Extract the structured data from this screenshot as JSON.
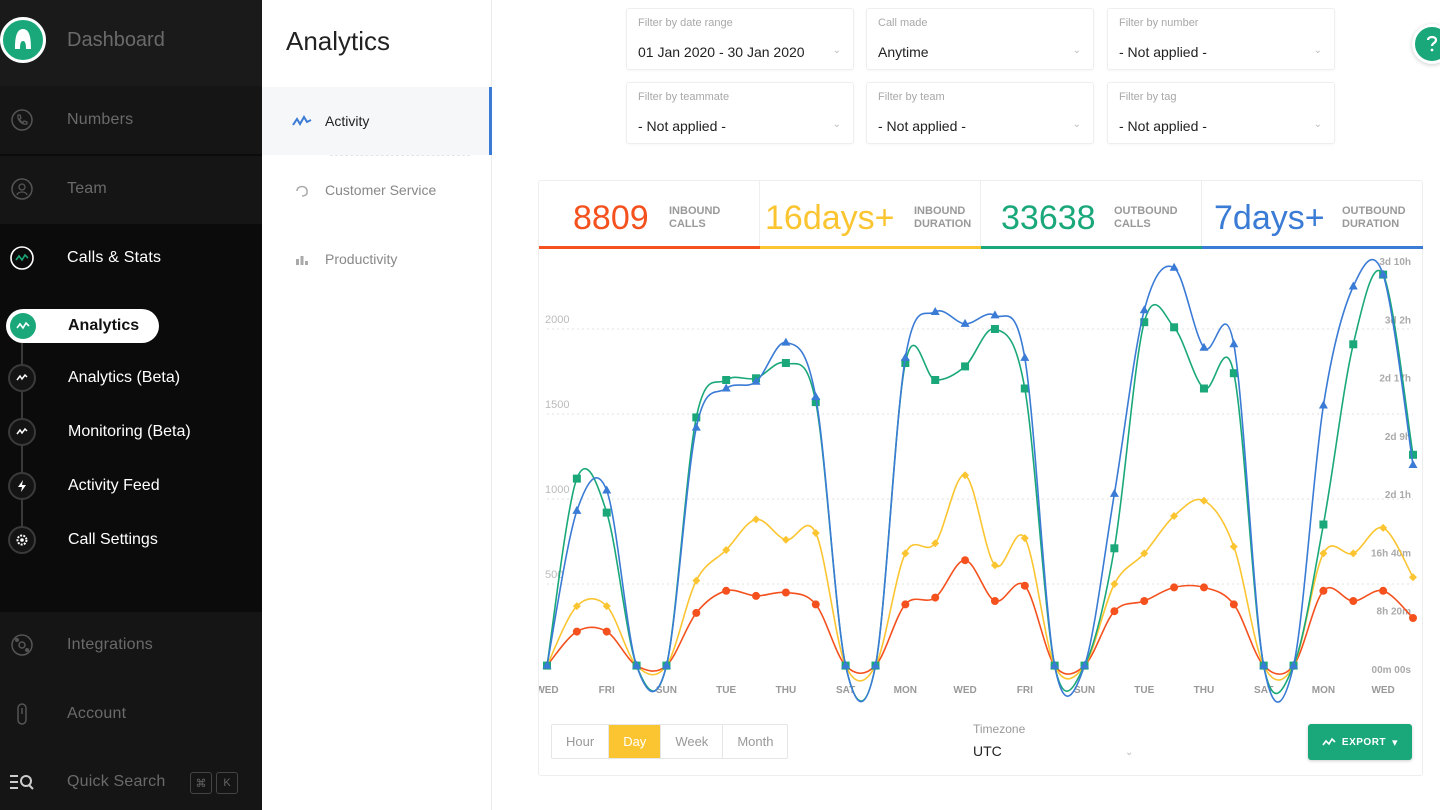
{
  "sidebar": {
    "brand": "Dashboard",
    "items": [
      {
        "label": "Numbers",
        "icon": "phone-icon"
      },
      {
        "label": "Team",
        "icon": "user-icon"
      },
      {
        "label": "Calls & Stats",
        "icon": "stats-icon"
      },
      {
        "label": "Integrations",
        "icon": "integrations-icon"
      },
      {
        "label": "Account",
        "icon": "account-icon"
      },
      {
        "label": "Quick Search",
        "icon": "quick-search-icon"
      }
    ],
    "sub_items": [
      {
        "label": "Analytics",
        "icon": "analytics-icon"
      },
      {
        "label": "Analytics (Beta)",
        "icon": "analytics-beta-icon"
      },
      {
        "label": "Monitoring (Beta)",
        "icon": "monitoring-icon"
      },
      {
        "label": "Activity Feed",
        "icon": "lightning-icon"
      },
      {
        "label": "Call Settings",
        "icon": "gear-icon"
      }
    ],
    "shortcut_keys": [
      "⌘",
      "K"
    ]
  },
  "subnav": {
    "title": "Analytics",
    "items": [
      {
        "label": "Activity",
        "icon": "activity-icon",
        "active": true
      },
      {
        "label": "Customer Service",
        "icon": "headset-icon",
        "active": false
      },
      {
        "label": "Productivity",
        "icon": "bar-chart-icon",
        "active": false
      }
    ]
  },
  "filters": [
    {
      "label": "Filter by date range",
      "value": "01 Jan 2020 - 30 Jan 2020"
    },
    {
      "label": "Call made",
      "value": "Anytime"
    },
    {
      "label": "Filter by number",
      "value": "- Not applied -"
    },
    {
      "label": "Filter by teammate",
      "value": "- Not applied -"
    },
    {
      "label": "Filter by team",
      "value": "- Not applied -"
    },
    {
      "label": "Filter by tag",
      "value": "- Not applied -"
    }
  ],
  "stats": [
    {
      "value": "8809",
      "label1": "INBOUND",
      "label2": "CALLS",
      "color": "#f4511e"
    },
    {
      "value": "16days+",
      "label1": "INBOUND",
      "label2": "DURATION",
      "color": "#fbc531"
    },
    {
      "value": "33638",
      "label1": "OUTBOUND",
      "label2": "CALLS",
      "color": "#1aa87a"
    },
    {
      "value": "7days+",
      "label1": "OUTBOUND",
      "label2": "DURATION",
      "color": "#3a7bd5"
    }
  ],
  "controls": {
    "granularity": [
      "Hour",
      "Day",
      "Week",
      "Month"
    ],
    "selected_granularity": "Day",
    "timezone_label": "Timezone",
    "timezone_value": "UTC",
    "export_label": "EXPORT"
  },
  "chart_data": {
    "type": "line",
    "categories": [
      "WED",
      "THU",
      "FRI",
      "SAT",
      "SUN",
      "MON",
      "TUE",
      "WED",
      "THU",
      "FRI",
      "SAT",
      "SUN",
      "MON",
      "TUE",
      "WED",
      "THU",
      "FRI",
      "SAT",
      "SUN",
      "MON",
      "TUE",
      "WED",
      "THU",
      "FRI",
      "SAT",
      "SUN",
      "MON",
      "TUE",
      "WED",
      "THU"
    ],
    "x_tick_labels": [
      "WED",
      "FRI",
      "SUN",
      "TUE",
      "THU",
      "SAT",
      "MON",
      "WED",
      "FRI",
      "SUN",
      "TUE",
      "THU",
      "SAT",
      "MON",
      "WED"
    ],
    "y_ticks_left": [
      500,
      1000,
      1500,
      2000
    ],
    "y_ticks_right": [
      "00m 00s",
      "8h 20m",
      "16h 40m",
      "2d 1h",
      "2d 9h",
      "2d 17h",
      "3d 2h",
      "3d 10h"
    ],
    "ylim": [
      0,
      2400
    ],
    "grid": true,
    "series": [
      {
        "color": "#f4511e",
        "marker": "circle",
        "values": [
          20,
          220,
          220,
          20,
          20,
          330,
          460,
          430,
          450,
          380,
          20,
          20,
          380,
          420,
          640,
          400,
          490,
          20,
          20,
          340,
          400,
          480,
          480,
          380,
          20,
          20,
          460,
          400,
          460,
          300
        ]
      },
      {
        "color": "#fbc531",
        "marker": "diamond",
        "values": [
          20,
          370,
          370,
          20,
          20,
          520,
          700,
          880,
          760,
          800,
          20,
          20,
          680,
          740,
          1140,
          610,
          770,
          20,
          20,
          500,
          680,
          900,
          990,
          720,
          20,
          20,
          680,
          680,
          830,
          540
        ]
      },
      {
        "color": "#1aa87a",
        "marker": "square",
        "values": [
          20,
          1120,
          920,
          20,
          20,
          1480,
          1700,
          1710,
          1800,
          1570,
          20,
          20,
          1800,
          1700,
          1780,
          2000,
          1650,
          20,
          20,
          710,
          2040,
          2010,
          1650,
          1740,
          20,
          20,
          850,
          1910,
          2320,
          1260
        ]
      },
      {
        "color": "#3a7bd5",
        "marker": "triangle",
        "values": [
          20,
          930,
          1050,
          20,
          20,
          1420,
          1650,
          1690,
          1920,
          1600,
          20,
          20,
          1830,
          2100,
          2030,
          2080,
          1830,
          20,
          20,
          1030,
          2110,
          2360,
          1890,
          1910,
          20,
          20,
          1550,
          2250,
          2320,
          1200
        ]
      }
    ]
  }
}
